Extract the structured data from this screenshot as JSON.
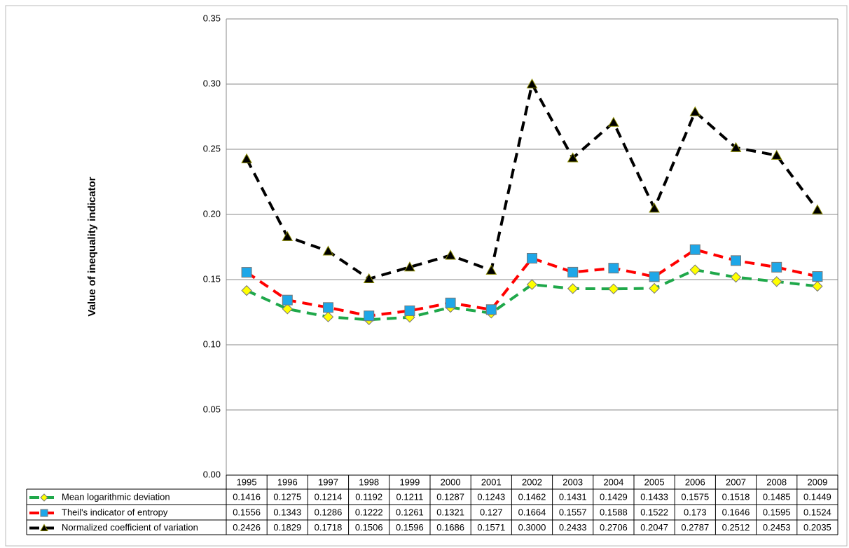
{
  "chart_data": {
    "type": "line",
    "y_label": "Value of inequality indicator",
    "categories": [
      "1995",
      "1996",
      "1997",
      "1998",
      "1999",
      "2000",
      "2001",
      "2002",
      "2003",
      "2004",
      "2005",
      "2006",
      "2007",
      "2008",
      "2009"
    ],
    "series": [
      {
        "name": "Mean logarithmic deviation",
        "color": "#1fa84a",
        "marker": "diamond",
        "marker_color": "#ffff00",
        "values": [
          0.1416,
          0.1275,
          0.1214,
          0.1192,
          0.1211,
          0.1287,
          0.1243,
          0.1462,
          0.1431,
          0.1429,
          0.1433,
          0.1575,
          0.1518,
          0.1485,
          0.1449
        ]
      },
      {
        "name": "Theil's indicator of entropy",
        "color": "#ff0000",
        "marker": "square",
        "marker_color": "#1ea7e8",
        "values": [
          0.1556,
          0.1343,
          0.1286,
          0.1222,
          0.1261,
          0.1321,
          0.127,
          0.1664,
          0.1557,
          0.1588,
          0.1522,
          0.173,
          0.1646,
          0.1595,
          0.1524
        ]
      },
      {
        "name": "Normalized coefficient of variation",
        "color": "#000000",
        "marker": "triangle",
        "marker_color": "#000000",
        "values": [
          0.2426,
          0.1829,
          0.1718,
          0.1506,
          0.1596,
          0.1686,
          0.1571,
          0.3,
          0.2433,
          0.2706,
          0.2047,
          0.2787,
          0.2512,
          0.2453,
          0.2035
        ],
        "value_labels": [
          "0.2426",
          "0.1829",
          "0.1718",
          "0.1506",
          "0.1596",
          "0.1686",
          "0.1571",
          "0.3000",
          "0.2433",
          "0.2706",
          "0.2047",
          "0.2787",
          "0.2512",
          "0.2453",
          "0.2035"
        ]
      }
    ],
    "ylim": [
      0,
      0.35
    ],
    "yticks": [
      {
        "value": 0,
        "label": "0.00"
      },
      0.05,
      {
        "value": 0.1,
        "label": "0.10"
      },
      0.15,
      {
        "value": 0.2,
        "label": "0.20"
      },
      0.25,
      {
        "value": 0.3,
        "label": "0.30"
      },
      0.35
    ],
    "grid": true,
    "data_table": true
  }
}
